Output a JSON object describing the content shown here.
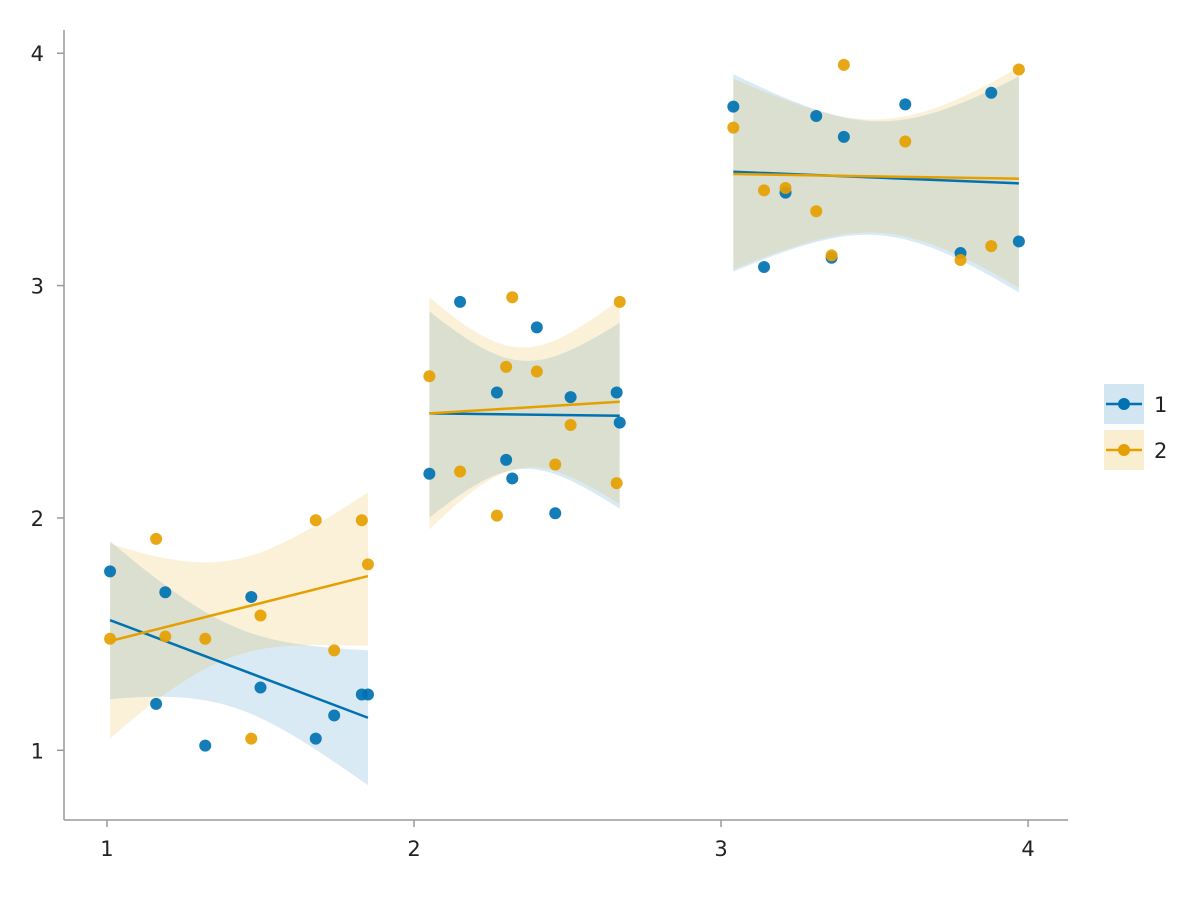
{
  "chart_data": {
    "type": "scatter",
    "title": "",
    "xlabel": "",
    "ylabel": "",
    "xlim": [
      0.86,
      4.13
    ],
    "ylim": [
      0.7,
      4.1
    ],
    "xticks": [
      "1",
      "2",
      "3",
      "4"
    ],
    "yticks": [
      "1",
      "2",
      "3",
      "4"
    ],
    "grid": false,
    "legend_position": "right",
    "series": [
      {
        "name": "1",
        "color": "#0072B2",
        "points": [
          [
            1.01,
            1.77
          ],
          [
            1.16,
            1.2
          ],
          [
            1.19,
            1.68
          ],
          [
            1.32,
            1.02
          ],
          [
            1.47,
            1.66
          ],
          [
            1.5,
            1.27
          ],
          [
            1.68,
            1.05
          ],
          [
            1.74,
            1.15
          ],
          [
            1.83,
            1.24
          ],
          [
            1.85,
            1.24
          ],
          [
            2.05,
            2.19
          ],
          [
            2.15,
            2.93
          ],
          [
            2.27,
            2.54
          ],
          [
            2.3,
            2.25
          ],
          [
            2.32,
            2.17
          ],
          [
            2.4,
            2.82
          ],
          [
            2.46,
            2.02
          ],
          [
            2.51,
            2.52
          ],
          [
            2.66,
            2.54
          ],
          [
            2.67,
            2.41
          ],
          [
            3.04,
            3.77
          ],
          [
            3.14,
            3.08
          ],
          [
            3.21,
            3.4
          ],
          [
            3.31,
            3.73
          ],
          [
            3.36,
            3.12
          ],
          [
            3.4,
            3.64
          ],
          [
            3.6,
            3.78
          ],
          [
            3.78,
            3.14
          ],
          [
            3.88,
            3.83
          ],
          [
            3.97,
            3.19
          ]
        ],
        "fits": [
          {
            "x": [
              1.01,
              1.85
            ],
            "y": [
              1.56,
              1.14
            ],
            "band_lower": [
              1.22,
              0.85
            ],
            "band_upper": [
              1.9,
              1.43
            ]
          },
          {
            "x": [
              2.05,
              2.67
            ],
            "y": [
              2.45,
              2.44
            ],
            "band_lower": [
              2.0,
              2.04
            ],
            "band_upper": [
              2.89,
              2.84
            ]
          },
          {
            "x": [
              3.04,
              3.97
            ],
            "y": [
              3.49,
              3.44
            ],
            "band_lower": [
              3.06,
              2.97
            ],
            "band_upper": [
              3.91,
              3.9
            ]
          }
        ]
      },
      {
        "name": "2",
        "color": "#E69F00",
        "points": [
          [
            1.01,
            1.48
          ],
          [
            1.16,
            1.91
          ],
          [
            1.19,
            1.49
          ],
          [
            1.32,
            1.48
          ],
          [
            1.47,
            1.05
          ],
          [
            1.5,
            1.58
          ],
          [
            1.68,
            1.99
          ],
          [
            1.74,
            1.43
          ],
          [
            1.83,
            1.99
          ],
          [
            1.85,
            1.8
          ],
          [
            2.05,
            2.61
          ],
          [
            2.15,
            2.2
          ],
          [
            2.27,
            2.01
          ],
          [
            2.3,
            2.65
          ],
          [
            2.32,
            2.95
          ],
          [
            2.4,
            2.63
          ],
          [
            2.46,
            2.23
          ],
          [
            2.51,
            2.4
          ],
          [
            2.66,
            2.15
          ],
          [
            2.67,
            2.93
          ],
          [
            3.04,
            3.68
          ],
          [
            3.14,
            3.41
          ],
          [
            3.21,
            3.42
          ],
          [
            3.31,
            3.32
          ],
          [
            3.36,
            3.13
          ],
          [
            3.4,
            3.95
          ],
          [
            3.6,
            3.62
          ],
          [
            3.78,
            3.11
          ],
          [
            3.88,
            3.17
          ],
          [
            3.97,
            3.93
          ]
        ],
        "fits": [
          {
            "x": [
              1.01,
              1.85
            ],
            "y": [
              1.47,
              1.75
            ],
            "band_lower": [
              1.05,
              1.45
            ],
            "band_upper": [
              1.89,
              2.11
            ]
          },
          {
            "x": [
              2.05,
              2.67
            ],
            "y": [
              2.45,
              2.5
            ],
            "band_lower": [
              1.95,
              2.06
            ],
            "band_upper": [
              2.95,
              2.94
            ]
          },
          {
            "x": [
              3.04,
              3.97
            ],
            "y": [
              3.48,
              3.46
            ],
            "band_lower": [
              3.07,
              2.99
            ],
            "band_upper": [
              3.89,
              3.94
            ]
          }
        ]
      }
    ]
  }
}
